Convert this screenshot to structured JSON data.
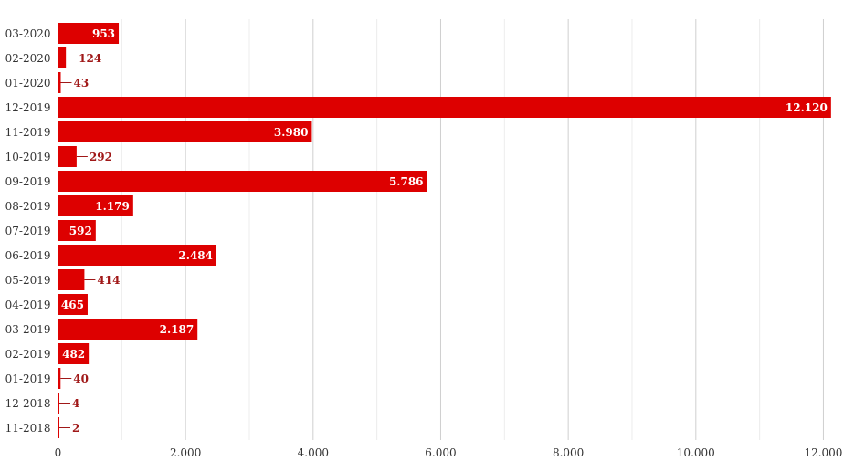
{
  "chart_data": {
    "type": "bar",
    "orientation": "horizontal",
    "categories": [
      "03-2020",
      "02-2020",
      "01-2020",
      "12-2019",
      "11-2019",
      "10-2019",
      "09-2019",
      "08-2019",
      "07-2019",
      "06-2019",
      "05-2019",
      "04-2019",
      "03-2019",
      "02-2019",
      "01-2019",
      "12-2018",
      "11-2018"
    ],
    "values": [
      953,
      124,
      43,
      12120,
      3980,
      292,
      5786,
      1179,
      592,
      2484,
      414,
      465,
      2187,
      482,
      40,
      4,
      2
    ],
    "value_labels": [
      "953",
      "124",
      "43",
      "12.120",
      "3.980",
      "292",
      "5.786",
      "1.179",
      "592",
      "2.484",
      "414",
      "465",
      "2.187",
      "482",
      "40",
      "4",
      "2"
    ],
    "x_ticks": [
      0,
      2000,
      4000,
      6000,
      8000,
      10000,
      12000
    ],
    "x_tick_labels": [
      "0",
      "2.000",
      "4.000",
      "6.000",
      "8.000",
      "10.000",
      "12.000"
    ],
    "xlim": [
      0,
      12120
    ],
    "grid": true,
    "legend": "none",
    "bar_color": "#dd0000",
    "label_outside_color": "#a01818",
    "title": "",
    "xlabel": "",
    "ylabel": ""
  }
}
